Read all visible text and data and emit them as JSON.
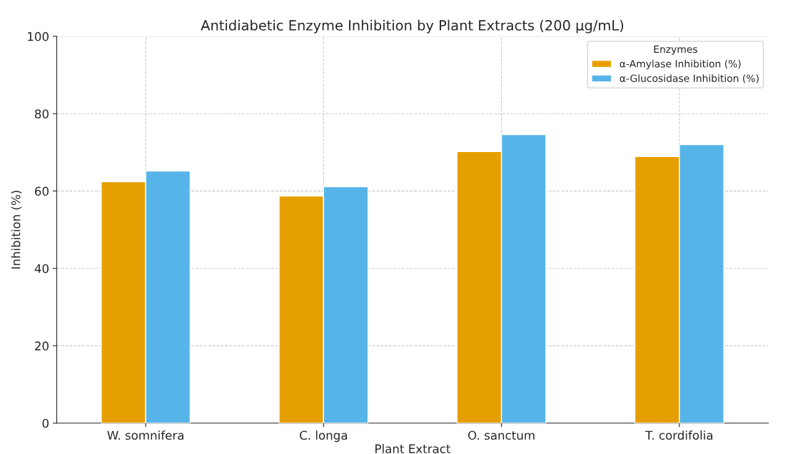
{
  "chart_data": {
    "type": "bar",
    "title": "Antidiabetic Enzyme Inhibition by Plant Extracts (200 µg/mL)",
    "xlabel": "Plant Extract",
    "ylabel": "Inhibition (%)",
    "legend_title": "Enzymes",
    "categories": [
      "W. somnifera",
      "C. longa",
      "O. sanctum",
      "T. cordifolia"
    ],
    "series": [
      {
        "name": "α-Amylase Inhibition (%)",
        "color": "#e69f00",
        "values": [
          62.4,
          58.7,
          70.2,
          68.9
        ]
      },
      {
        "name": "α-Glucosidase Inhibition (%)",
        "color": "#56b4e9",
        "values": [
          65.2,
          61.1,
          74.6,
          72.0
        ]
      }
    ],
    "ylim": [
      0,
      100
    ],
    "yticks": [
      0,
      20,
      40,
      60,
      80,
      100
    ],
    "grid": true,
    "legend": "top right"
  }
}
